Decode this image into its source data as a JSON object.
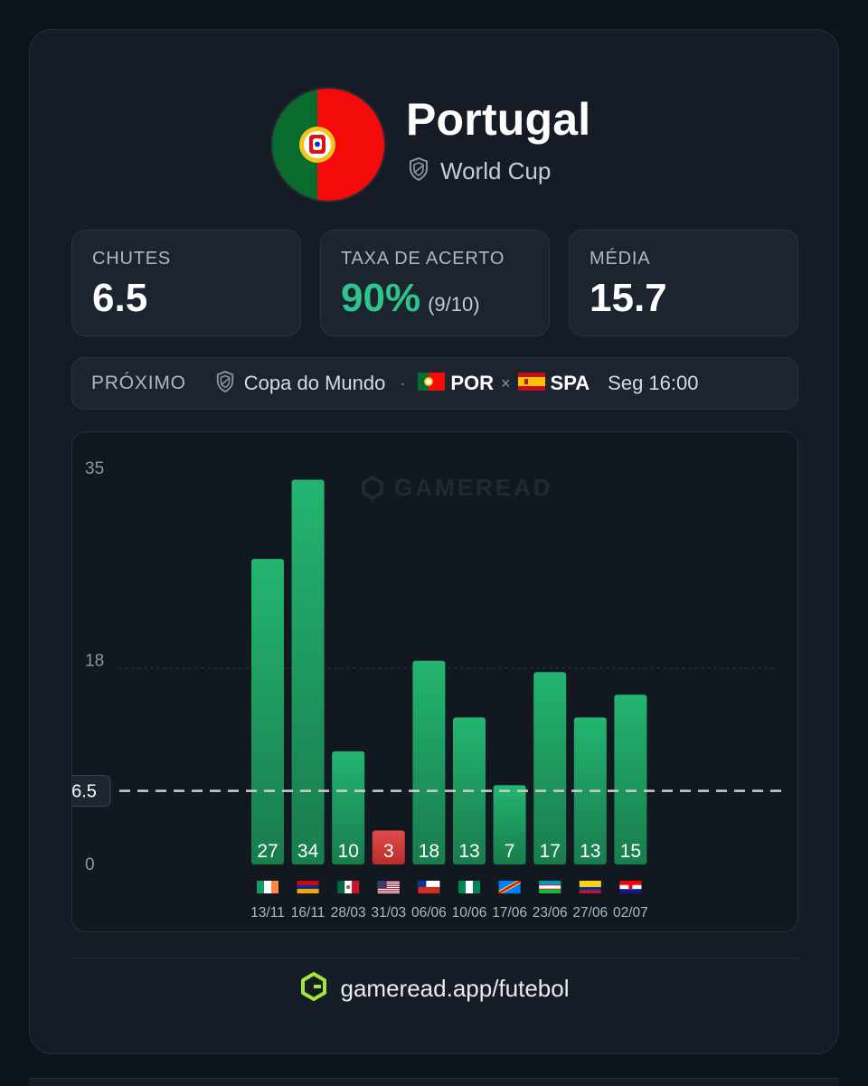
{
  "team": {
    "name": "Portugal",
    "competition": "World Cup"
  },
  "stats": [
    {
      "label": "CHUTES",
      "value": "6.5"
    },
    {
      "label": "TAXA DE ACERTO",
      "value": "90%",
      "sub": "(9/10)"
    },
    {
      "label": "MÉDIA",
      "value": "15.7"
    }
  ],
  "next": {
    "label": "PRÓXIMO",
    "competition": "Copa do Mundo",
    "separator": "·",
    "home": "POR",
    "vs": "×",
    "away": "SPA",
    "kickoff": "Seg 16:00"
  },
  "watermark": "GAMEREAD",
  "footer": {
    "url": "gameread.app/futebol"
  },
  "colors": {
    "hit": "#1f9e63",
    "miss": "#dc3c3c",
    "accent": "#2fc48a",
    "logo": "#a3e635"
  },
  "chart_data": {
    "type": "bar",
    "categories": [
      "13/11",
      "16/11",
      "28/03",
      "31/03",
      "06/06",
      "10/06",
      "17/06",
      "23/06",
      "27/06",
      "02/07"
    ],
    "flags": [
      "ireland",
      "armenia",
      "mexico",
      "usa",
      "chile",
      "nigeria",
      "dr-congo",
      "uzbekistan",
      "colombia",
      "croatia"
    ],
    "values": [
      27,
      34,
      10,
      3,
      18,
      13,
      7,
      17,
      13,
      15
    ],
    "line": 6.5,
    "line_label": "6.5",
    "y_ticks": [
      "35",
      "18",
      "0"
    ],
    "ylim": [
      0,
      35
    ]
  }
}
